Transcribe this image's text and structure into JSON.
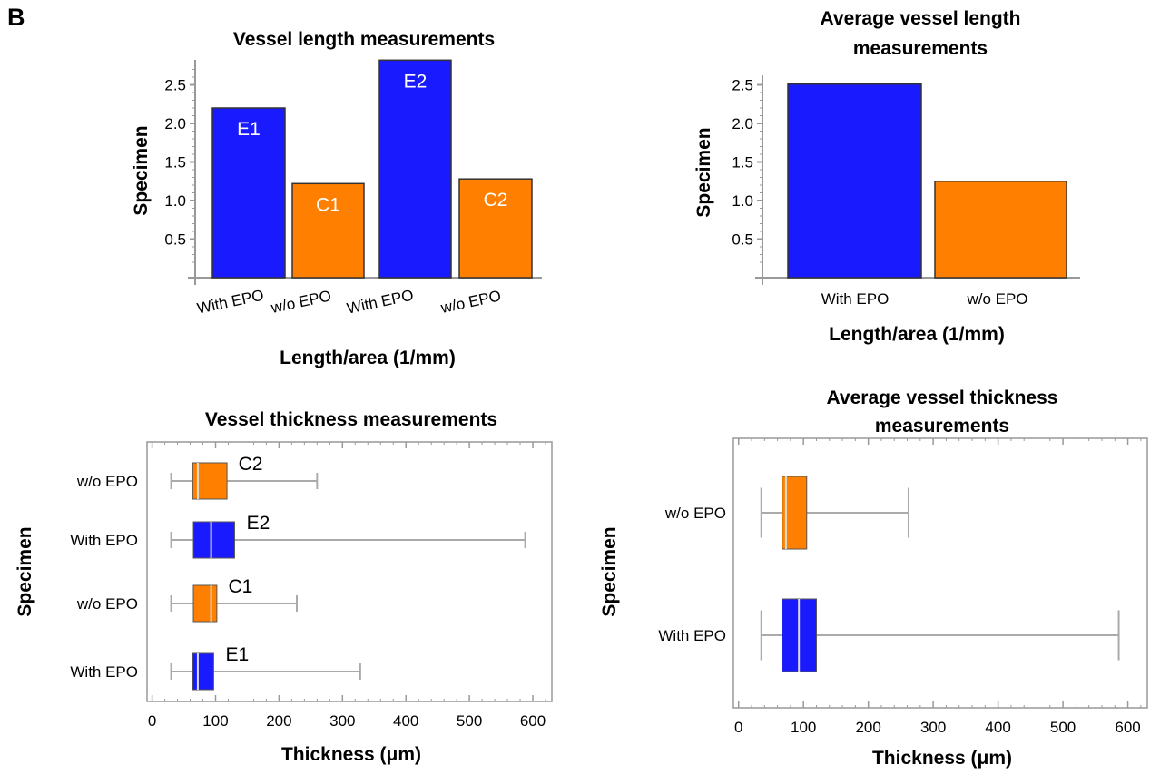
{
  "panel_label": "B",
  "colors": {
    "with_epo": "#1a1aff",
    "without_epo": "#ff8000",
    "whisker": "#aaaaaa",
    "axis": "#999999"
  },
  "chart_data": [
    {
      "id": "vessel-length",
      "type": "bar",
      "title": "Vessel length measurements",
      "xlabel": "Length/area (1/mm)",
      "ylabel": "Specimen",
      "ylim": [
        0,
        2.8
      ],
      "yticks": [
        0.5,
        1.0,
        1.5,
        2.0,
        2.5
      ],
      "ytick_labels": [
        "0.5",
        "1.0",
        "1.5",
        "2.0",
        "2.5"
      ],
      "categories": [
        "With EPO",
        "w/o EPO",
        "With EPO",
        "w/o EPO"
      ],
      "values": [
        2.2,
        1.22,
        2.82,
        1.28
      ],
      "bar_labels": [
        "E1",
        "C1",
        "E2",
        "C2"
      ],
      "bar_colors": [
        "with_epo",
        "without_epo",
        "with_epo",
        "without_epo"
      ]
    },
    {
      "id": "avg-vessel-length",
      "type": "bar",
      "title": "Average vessel length measurements",
      "title_lines": [
        "Average vessel length",
        "measurements"
      ],
      "xlabel": "Length/area (1/mm)",
      "ylabel": "Specimen",
      "ylim": [
        0,
        2.6
      ],
      "yticks": [
        0.5,
        1.0,
        1.5,
        2.0,
        2.5
      ],
      "ytick_labels": [
        "0.5",
        "1.0",
        "1.5",
        "2.0",
        "2.5"
      ],
      "categories": [
        "With EPO",
        "w/o EPO"
      ],
      "values": [
        2.51,
        1.25
      ],
      "bar_colors": [
        "with_epo",
        "without_epo"
      ]
    },
    {
      "id": "vessel-thickness",
      "type": "box",
      "title": "Vessel thickness measurements",
      "xlabel": "Thickness (μm)",
      "ylabel": "Specimen",
      "xlim": [
        -8,
        630
      ],
      "xticks": [
        0,
        100,
        200,
        300,
        400,
        500,
        600
      ],
      "xtick_labels": [
        "0",
        "100",
        "200",
        "300",
        "400",
        "500",
        "600"
      ],
      "boxes": [
        {
          "category": "w/o EPO",
          "label": "C2",
          "color": "without_epo",
          "min": 30,
          "q1": 64,
          "median": 72,
          "q3": 118,
          "max": 260
        },
        {
          "category": "With EPO",
          "label": "E2",
          "color": "with_epo",
          "min": 30,
          "q1": 65,
          "median": 93,
          "q3": 130,
          "max": 588
        },
        {
          "category": "w/o EPO",
          "label": "C1",
          "color": "without_epo",
          "min": 30,
          "q1": 65,
          "median": 93,
          "q3": 102,
          "max": 228
        },
        {
          "category": "With EPO",
          "label": "E1",
          "color": "with_epo",
          "min": 30,
          "q1": 64,
          "median": 72,
          "q3": 97,
          "max": 328
        }
      ]
    },
    {
      "id": "avg-vessel-thickness",
      "type": "box",
      "title": "Average vessel thickness measurements",
      "title_lines": [
        "Average vessel thickness",
        "measurements"
      ],
      "xlabel": "Thickness (μm)",
      "ylabel": "Specimen",
      "xlim": [
        -8,
        630
      ],
      "xticks": [
        0,
        100,
        200,
        300,
        400,
        500,
        600
      ],
      "xtick_labels": [
        "0",
        "100",
        "200",
        "300",
        "400",
        "500",
        "600"
      ],
      "boxes": [
        {
          "category": "w/o EPO",
          "color": "without_epo",
          "min": 35,
          "q1": 67,
          "median": 73,
          "q3": 105,
          "max": 262
        },
        {
          "category": "With EPO",
          "color": "with_epo",
          "min": 35,
          "q1": 67,
          "median": 93,
          "q3": 120,
          "max": 586
        }
      ]
    }
  ]
}
